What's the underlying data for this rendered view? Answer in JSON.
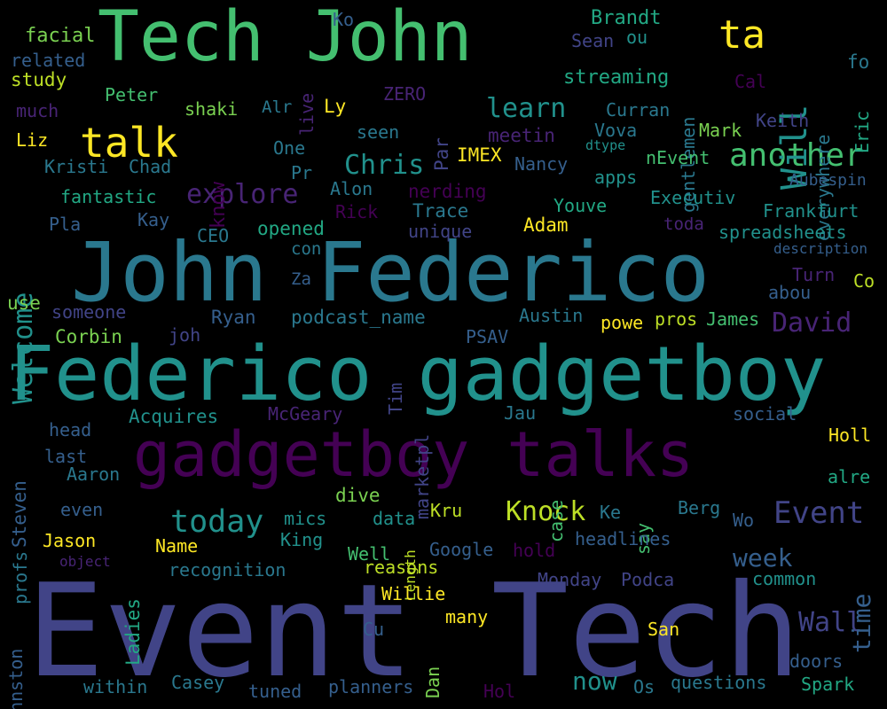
{
  "background": "#000000",
  "palette": {
    "v0": "#440154",
    "v1": "#482475",
    "v2": "#414487",
    "v3": "#355f8d",
    "v4": "#2a788e",
    "v5": "#21918c",
    "v6": "#22a884",
    "v7": "#44bf70",
    "v8": "#7ad151",
    "v9": "#bddf26",
    "v10": "#fde725"
  },
  "words": [
    {
      "text": "Event Tech",
      "color": "v2"
    },
    {
      "text": "John Federico",
      "color": "v4"
    },
    {
      "text": "Federico gadgetboy",
      "color": "v5"
    },
    {
      "text": "gadgetboy talks",
      "color": "v0"
    },
    {
      "text": "Tech John",
      "color": "v7"
    },
    {
      "text": "talk",
      "color": "v10"
    },
    {
      "text": "ta",
      "color": "v10"
    },
    {
      "text": "another",
      "color": "v7"
    },
    {
      "text": "Will",
      "color": "v5"
    },
    {
      "text": "Chris",
      "color": "v5"
    },
    {
      "text": "learn",
      "color": "v5"
    },
    {
      "text": "explore",
      "color": "v1"
    },
    {
      "text": "today",
      "color": "v5"
    },
    {
      "text": "Event",
      "color": "v2"
    },
    {
      "text": "Knock",
      "color": "v9"
    },
    {
      "text": "David",
      "color": "v1"
    },
    {
      "text": "Wall",
      "color": "v2"
    },
    {
      "text": "week",
      "color": "v3"
    },
    {
      "text": "now",
      "color": "v5"
    },
    {
      "text": "time",
      "color": "v3"
    },
    {
      "text": "Welcome",
      "color": "v5"
    },
    {
      "text": "facial",
      "color": "v8"
    },
    {
      "text": "related",
      "color": "v3"
    },
    {
      "text": "study",
      "color": "v9"
    },
    {
      "text": "much",
      "color": "v1"
    },
    {
      "text": "Liz",
      "color": "v10"
    },
    {
      "text": "Kristi",
      "color": "v4"
    },
    {
      "text": "Chad",
      "color": "v4"
    },
    {
      "text": "fantastic",
      "color": "v6"
    },
    {
      "text": "Pla",
      "color": "v3"
    },
    {
      "text": "Kay",
      "color": "v3"
    },
    {
      "text": "use",
      "color": "v8"
    },
    {
      "text": "someone",
      "color": "v2"
    },
    {
      "text": "Corbin",
      "color": "v8"
    },
    {
      "text": "Peter",
      "color": "v7"
    },
    {
      "text": "shaki",
      "color": "v8"
    },
    {
      "text": "Alr",
      "color": "v4"
    },
    {
      "text": "Ly",
      "color": "v10"
    },
    {
      "text": "One",
      "color": "v4"
    },
    {
      "text": "know",
      "color": "v0"
    },
    {
      "text": "live",
      "color": "v1"
    },
    {
      "text": "Ko",
      "color": "v3"
    },
    {
      "text": "ZERO",
      "color": "v1"
    },
    {
      "text": "Pr",
      "color": "v4"
    },
    {
      "text": "Alon",
      "color": "v4"
    },
    {
      "text": "Rick",
      "color": "v0"
    },
    {
      "text": "CEO",
      "color": "v4"
    },
    {
      "text": "opened",
      "color": "v6"
    },
    {
      "text": "con",
      "color": "v4"
    },
    {
      "text": "Za",
      "color": "v3"
    },
    {
      "text": "Ryan",
      "color": "v3"
    },
    {
      "text": "joh",
      "color": "v2"
    },
    {
      "text": "podcast_name",
      "color": "v4"
    },
    {
      "text": "seen",
      "color": "v4"
    },
    {
      "text": "Par",
      "color": "v2"
    },
    {
      "text": "meetin",
      "color": "v1"
    },
    {
      "text": "IMEX",
      "color": "v10"
    },
    {
      "text": "nerding",
      "color": "v0"
    },
    {
      "text": "Trace",
      "color": "v4"
    },
    {
      "text": "unique",
      "color": "v2"
    },
    {
      "text": "Nancy",
      "color": "v3"
    },
    {
      "text": "Youve",
      "color": "v6"
    },
    {
      "text": "Adam",
      "color": "v10"
    },
    {
      "text": "apps",
      "color": "v5"
    },
    {
      "text": "Brandt",
      "color": "v6"
    },
    {
      "text": "Sean",
      "color": "v2"
    },
    {
      "text": "ou",
      "color": "v5"
    },
    {
      "text": "gentlemen",
      "color": "v4"
    },
    {
      "text": "streaming",
      "color": "v6"
    },
    {
      "text": "Curran",
      "color": "v4"
    },
    {
      "text": "Vova",
      "color": "v4"
    },
    {
      "text": "dtype",
      "color": "v5"
    },
    {
      "text": "Mark",
      "color": "v8"
    },
    {
      "text": "nEvent",
      "color": "v7"
    },
    {
      "text": "Cal",
      "color": "v0"
    },
    {
      "text": "Keith",
      "color": "v2"
    },
    {
      "text": "everywhere",
      "color": "v4"
    },
    {
      "text": "fo",
      "color": "v4"
    },
    {
      "text": "Eric",
      "color": "v6"
    },
    {
      "text": "Executiv",
      "color": "v5"
    },
    {
      "text": "Aubespin",
      "color": "v3"
    },
    {
      "text": "toda",
      "color": "v1"
    },
    {
      "text": "Frankfurt",
      "color": "v5"
    },
    {
      "text": "spreadsheets",
      "color": "v5"
    },
    {
      "text": "description",
      "color": "v3"
    },
    {
      "text": "Turn",
      "color": "v1"
    },
    {
      "text": "Co",
      "color": "v9"
    },
    {
      "text": "abou",
      "color": "v3"
    },
    {
      "text": "Austin",
      "color": "v4"
    },
    {
      "text": "powe",
      "color": "v10"
    },
    {
      "text": "pros",
      "color": "v9"
    },
    {
      "text": "James",
      "color": "v7"
    },
    {
      "text": "PSAV",
      "color": "v3"
    },
    {
      "text": "Tim",
      "color": "v2"
    },
    {
      "text": "marketpl",
      "color": "v2"
    },
    {
      "text": "Acquires",
      "color": "v5"
    },
    {
      "text": "McGeary",
      "color": "v1"
    },
    {
      "text": "Jau",
      "color": "v4"
    },
    {
      "text": "social",
      "color": "v3"
    },
    {
      "text": "Holl",
      "color": "v10"
    },
    {
      "text": "head",
      "color": "v3"
    },
    {
      "text": "last",
      "color": "v3"
    },
    {
      "text": "Aaron",
      "color": "v4"
    },
    {
      "text": "Steven",
      "color": "v3"
    },
    {
      "text": "profs",
      "color": "v4"
    },
    {
      "text": "Johnston",
      "color": "v3"
    },
    {
      "text": "even",
      "color": "v3"
    },
    {
      "text": "Jason",
      "color": "v10"
    },
    {
      "text": "object",
      "color": "v1"
    },
    {
      "text": "Name",
      "color": "v10"
    },
    {
      "text": "Ladies",
      "color": "v6"
    },
    {
      "text": "recognition",
      "color": "v4"
    },
    {
      "text": "dive",
      "color": "v8"
    },
    {
      "text": "mics",
      "color": "v5"
    },
    {
      "text": "data",
      "color": "v5"
    },
    {
      "text": "King",
      "color": "v5"
    },
    {
      "text": "Well",
      "color": "v7"
    },
    {
      "text": "reasons",
      "color": "v9"
    },
    {
      "text": "Length",
      "color": "v9"
    },
    {
      "text": "Kru",
      "color": "v9"
    },
    {
      "text": "Google",
      "color": "v3"
    },
    {
      "text": "hold",
      "color": "v0"
    },
    {
      "text": "case",
      "color": "v7"
    },
    {
      "text": "Ke",
      "color": "v4"
    },
    {
      "text": "say",
      "color": "v7"
    },
    {
      "text": "Berg",
      "color": "v4"
    },
    {
      "text": "Wo",
      "color": "v3"
    },
    {
      "text": "headlines",
      "color": "v3"
    },
    {
      "text": "alre",
      "color": "v6"
    },
    {
      "text": "common",
      "color": "v5"
    },
    {
      "text": "Monday",
      "color": "v2"
    },
    {
      "text": "Podca",
      "color": "v2"
    },
    {
      "text": "Willie",
      "color": "v10"
    },
    {
      "text": "many",
      "color": "v10"
    },
    {
      "text": "Cu",
      "color": "v3"
    },
    {
      "text": "Dan",
      "color": "v8"
    },
    {
      "text": "San",
      "color": "v10"
    },
    {
      "text": "doors",
      "color": "v3"
    },
    {
      "text": "within",
      "color": "v4"
    },
    {
      "text": "Casey",
      "color": "v4"
    },
    {
      "text": "tuned",
      "color": "v3"
    },
    {
      "text": "planners",
      "color": "v3"
    },
    {
      "text": "Hol",
      "color": "v0"
    },
    {
      "text": "Os",
      "color": "v4"
    },
    {
      "text": "questions",
      "color": "v4"
    },
    {
      "text": "Spark",
      "color": "v6"
    }
  ]
}
